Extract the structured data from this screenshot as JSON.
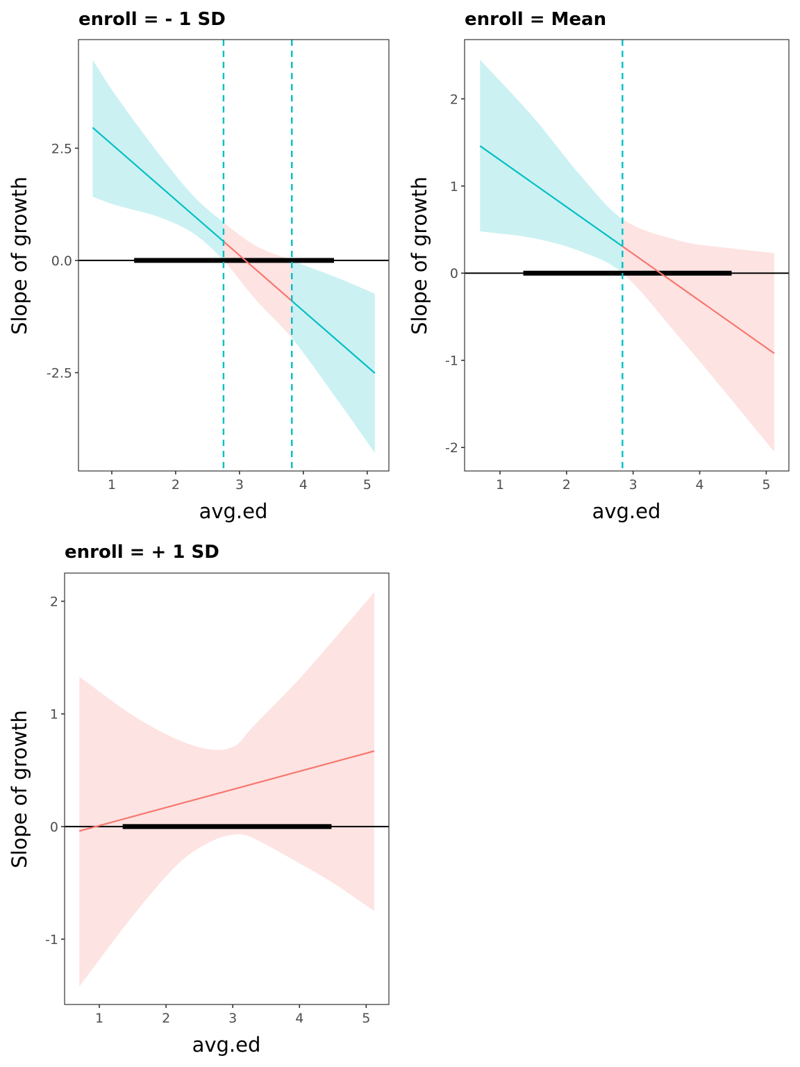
{
  "colors": {
    "significant": "#00BFC4",
    "not_significant": "#F8766D",
    "significant_fill": "#CCF1F2",
    "not_significant_fill": "#FDE3E2",
    "zero_line": "#000000",
    "panel_border": "#333333"
  },
  "chart_data": [
    {
      "type": "line",
      "title": "enroll = - 1 SD",
      "xlabel": "avg.ed",
      "ylabel": "Slope of growth",
      "xlim": [
        0.478,
        5.34
      ],
      "ylim": [
        -4.69,
        4.92
      ],
      "x_ticks": [
        1,
        2,
        3,
        4,
        5
      ],
      "x_tick_labels": [
        "1",
        "2",
        "3",
        "4",
        "5"
      ],
      "y_ticks": [
        -2.5,
        0,
        2.5
      ],
      "y_tick_labels": [
        "-2.5",
        "0.0",
        "2.5"
      ],
      "grid": false,
      "estimate": {
        "x": [
          0.7,
          5.12
        ],
        "y": [
          2.96,
          -2.51
        ]
      },
      "jn_bounds": [
        2.75,
        3.82
      ],
      "band": {
        "x": [
          0.7,
          1.02,
          1.75,
          2.29,
          2.75,
          3.24,
          3.82,
          4.54,
          5.12
        ],
        "lower": [
          1.42,
          1.25,
          0.96,
          0.59,
          0.0,
          -0.85,
          -1.73,
          -3.12,
          -4.29
        ],
        "upper": [
          4.47,
          3.76,
          2.35,
          1.42,
          0.85,
          0.34,
          0.0,
          -0.39,
          -0.74
        ]
      },
      "significant_regions": [
        [
          0.7,
          2.75
        ],
        [
          3.82,
          5.12
        ]
      ],
      "observed_range": [
        1.35,
        4.48
      ]
    },
    {
      "type": "line",
      "title": "enroll = Mean",
      "xlabel": "avg.ed",
      "ylabel": "Slope of growth",
      "xlim": [
        0.468,
        5.34
      ],
      "ylim": [
        -2.27,
        2.68
      ],
      "x_ticks": [
        1,
        2,
        3,
        4,
        5
      ],
      "x_tick_labels": [
        "1",
        "2",
        "3",
        "4",
        "5"
      ],
      "y_ticks": [
        -2,
        -1,
        0,
        1,
        2
      ],
      "y_tick_labels": [
        "-2",
        "-1",
        "0",
        "1",
        "2"
      ],
      "grid": false,
      "estimate": {
        "x": [
          0.7,
          5.12
        ],
        "y": [
          1.46,
          -0.92
        ]
      },
      "jn_bounds": [
        2.84
      ],
      "band": {
        "x": [
          0.7,
          1.51,
          2.21,
          2.84,
          3.71,
          4.41,
          5.12
        ],
        "lower": [
          0.48,
          0.4,
          0.25,
          0.0,
          -0.75,
          -1.39,
          -2.05
        ],
        "upper": [
          2.45,
          1.78,
          1.12,
          0.62,
          0.37,
          0.29,
          0.23
        ]
      },
      "significant_regions": [
        [
          0.7,
          2.84
        ]
      ],
      "observed_range": [
        1.35,
        4.48
      ]
    },
    {
      "type": "line",
      "title": "enroll = + 1 SD",
      "xlabel": "avg.ed",
      "ylabel": "Slope of growth",
      "xlim": [
        0.479,
        5.34
      ],
      "ylim": [
        -1.58,
        2.25
      ],
      "x_ticks": [
        1,
        2,
        3,
        4,
        5
      ],
      "x_tick_labels": [
        "1",
        "2",
        "3",
        "4",
        "5"
      ],
      "y_ticks": [
        -1,
        0,
        1,
        2
      ],
      "y_tick_labels": [
        "-1",
        "0",
        "1",
        "2"
      ],
      "grid": false,
      "estimate": {
        "x": [
          0.7,
          5.12
        ],
        "y": [
          -0.04,
          0.67
        ]
      },
      "jn_bounds": [],
      "band": {
        "x": [
          0.7,
          1.52,
          2.22,
          2.72,
          3.05,
          3.26,
          3.95,
          4.5,
          5.12
        ],
        "lower": [
          -1.42,
          -0.78,
          -0.31,
          -0.12,
          -0.07,
          -0.09,
          -0.31,
          -0.5,
          -0.75
        ],
        "upper": [
          1.33,
          0.98,
          0.76,
          0.68,
          0.72,
          0.86,
          1.28,
          1.65,
          2.08
        ]
      },
      "significant_regions": [],
      "observed_range": [
        1.35,
        4.48
      ]
    }
  ]
}
